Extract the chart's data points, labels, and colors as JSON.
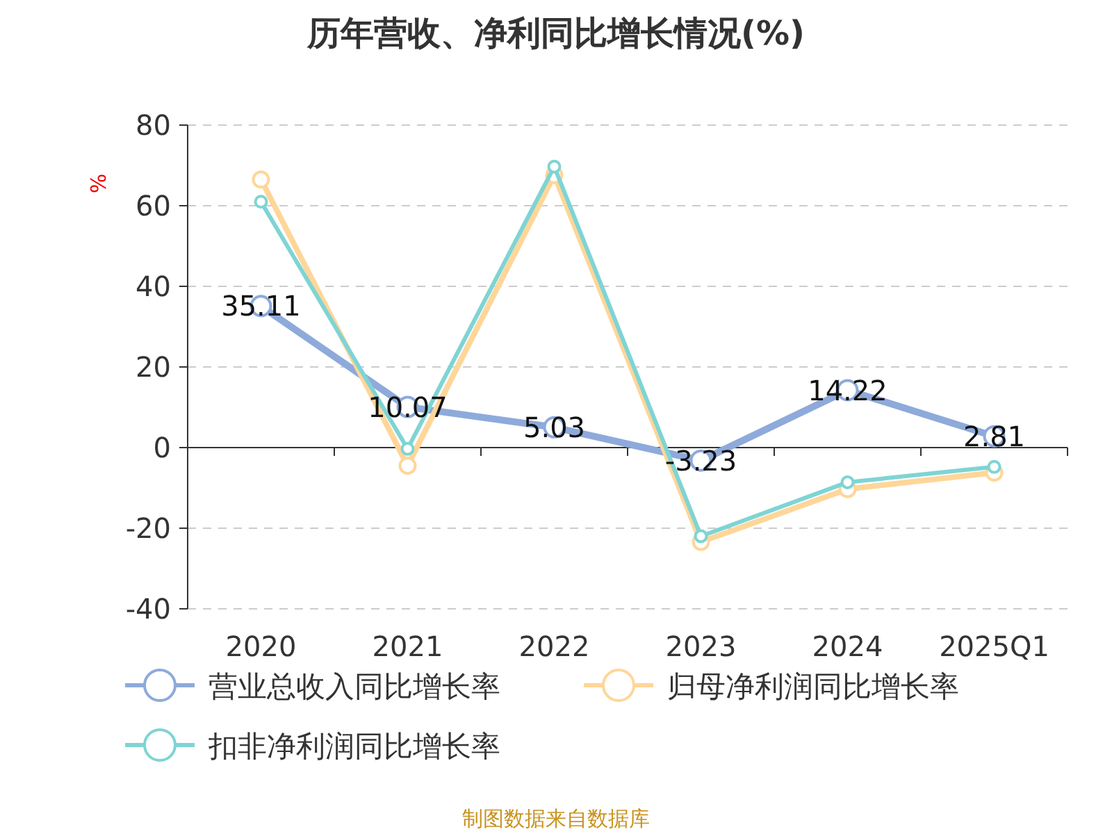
{
  "chart_data": {
    "type": "line",
    "title": "历年营收、净利同比增长情况(%)",
    "ylabel": "%",
    "categories": [
      "2020",
      "2021",
      "2022",
      "2023",
      "2024",
      "2025Q1"
    ],
    "series": [
      {
        "name": "营业总收入同比增长率",
        "color": "#8eaadb",
        "values": [
          35.11,
          10.07,
          5.03,
          -3.23,
          14.22,
          2.81
        ],
        "value_labels": [
          "35.11",
          "10.07",
          "5.03",
          "-3.23",
          "14.22",
          "2.81"
        ]
      },
      {
        "name": "归母净利润同比增长率",
        "color": "#ffd699",
        "values": [
          66.5,
          -4.5,
          67.6,
          -23.4,
          -10.3,
          -6.2
        ]
      },
      {
        "name": "扣非净利润同比增长率",
        "color": "#7fd4d4",
        "values": [
          61,
          -0.3,
          69.7,
          -22,
          -8.6,
          -4.8
        ]
      }
    ],
    "ylim": [
      -40,
      80
    ],
    "yticks": [
      -40,
      -20,
      0,
      20,
      40,
      60,
      80
    ],
    "grid": "y",
    "legend": "bottom",
    "marker": "circle",
    "annotations": [
      "制图数据来自数据库"
    ]
  }
}
